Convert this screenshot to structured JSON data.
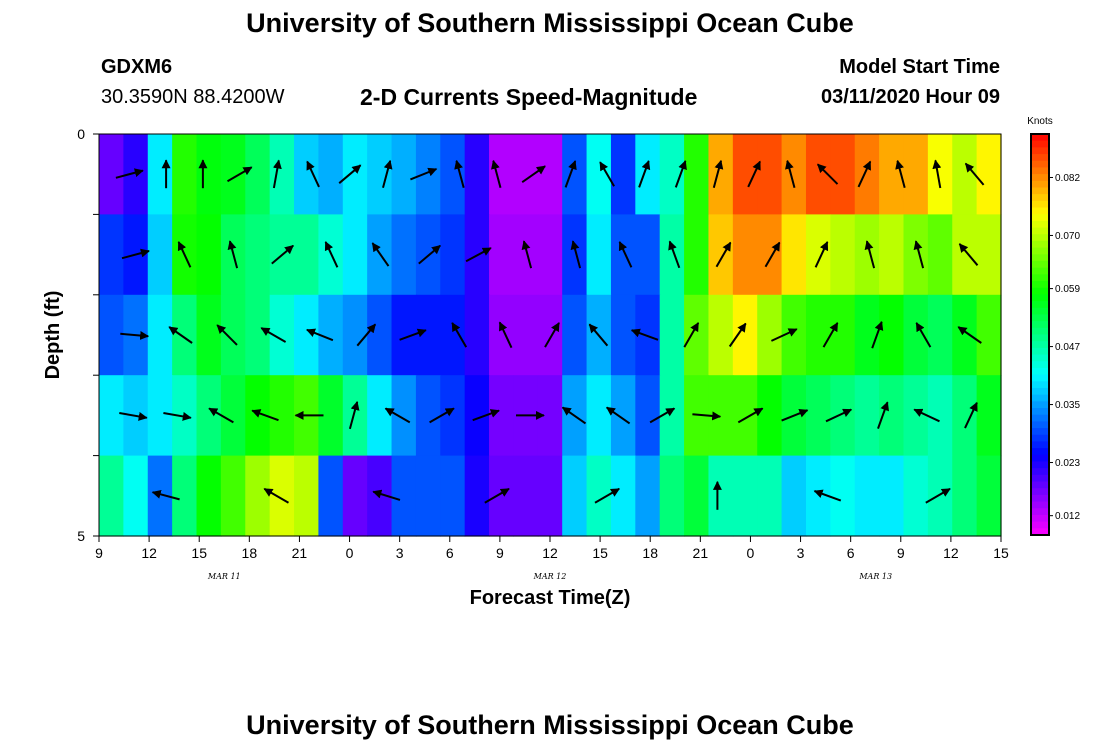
{
  "header": {
    "title": "University of Southern Mississippi Ocean Cube",
    "footer_title": "University of Southern Mississippi Ocean Cube",
    "station": "GDXM6",
    "location": "30.3590N 88.4200W",
    "subtitle": "2-D Currents Speed-Magnitude",
    "start_label": "Model Start Time",
    "start_value": "03/11/2020 Hour 09"
  },
  "chart_data": {
    "type": "heatmap",
    "title": "2-D Currents Speed-Magnitude",
    "xlabel": "Forecast Time(Z)",
    "ylabel": "Depth (ft)",
    "x_tick_labels": [
      "9",
      "12",
      "15",
      "18",
      "21",
      "0",
      "3",
      "6",
      "9",
      "12",
      "15",
      "18",
      "21",
      "0",
      "3",
      "6",
      "9",
      "12",
      "15"
    ],
    "x_hours": [
      0,
      3,
      6,
      9,
      12,
      15,
      18,
      21,
      24,
      27,
      30,
      33,
      36,
      39,
      42,
      45,
      48,
      51,
      54
    ],
    "date_labels": [
      {
        "label": "MAR 11",
        "hour": 7.5
      },
      {
        "label": "MAR 12",
        "hour": 27
      },
      {
        "label": "MAR 13",
        "hour": 46.5
      }
    ],
    "y_tick_labels": [
      "0",
      "5"
    ],
    "ylim": [
      0,
      5
    ],
    "depth_levels": [
      0.5,
      1.5,
      2.5,
      3.5,
      4.5
    ],
    "colorbar": {
      "unit": "Knots",
      "ticks": [
        "0.082",
        "0.070",
        "0.059",
        "0.047",
        "0.035",
        "0.023",
        "0.012"
      ],
      "tick_values": [
        0.082,
        0.07,
        0.059,
        0.047,
        0.035,
        0.023,
        0.012
      ],
      "range": [
        0.008,
        0.091
      ]
    },
    "speed_knots": [
      [
        0.018,
        0.022,
        0.04,
        0.06,
        0.057,
        0.056,
        0.052,
        0.046,
        0.038,
        0.036,
        0.04,
        0.038,
        0.036,
        0.033,
        0.03,
        0.022,
        0.013,
        0.013,
        0.013,
        0.03,
        0.042,
        0.028,
        0.04,
        0.045,
        0.06,
        0.08,
        0.086,
        0.086,
        0.082,
        0.086,
        0.086,
        0.083,
        0.08,
        0.08,
        0.074,
        0.07,
        0.075
      ],
      [
        0.028,
        0.026,
        0.038,
        0.059,
        0.058,
        0.052,
        0.05,
        0.048,
        0.048,
        0.044,
        0.04,
        0.035,
        0.032,
        0.03,
        0.028,
        0.022,
        0.014,
        0.014,
        0.014,
        0.028,
        0.04,
        0.03,
        0.03,
        0.047,
        0.06,
        0.078,
        0.082,
        0.082,
        0.076,
        0.072,
        0.07,
        0.068,
        0.07,
        0.066,
        0.064,
        0.07,
        0.07
      ],
      [
        0.03,
        0.032,
        0.04,
        0.05,
        0.056,
        0.052,
        0.05,
        0.044,
        0.04,
        0.036,
        0.034,
        0.03,
        0.026,
        0.026,
        0.026,
        0.022,
        0.015,
        0.015,
        0.015,
        0.03,
        0.036,
        0.03,
        0.028,
        0.047,
        0.064,
        0.07,
        0.075,
        0.068,
        0.062,
        0.06,
        0.06,
        0.056,
        0.058,
        0.054,
        0.052,
        0.056,
        0.062
      ],
      [
        0.04,
        0.038,
        0.04,
        0.045,
        0.05,
        0.054,
        0.058,
        0.06,
        0.062,
        0.055,
        0.048,
        0.04,
        0.034,
        0.03,
        0.028,
        0.024,
        0.017,
        0.017,
        0.017,
        0.035,
        0.04,
        0.035,
        0.03,
        0.047,
        0.062,
        0.062,
        0.062,
        0.058,
        0.054,
        0.052,
        0.05,
        0.048,
        0.05,
        0.048,
        0.046,
        0.05,
        0.056
      ],
      [
        0.048,
        0.042,
        0.032,
        0.05,
        0.058,
        0.062,
        0.068,
        0.072,
        0.07,
        0.03,
        0.018,
        0.02,
        0.03,
        0.03,
        0.03,
        0.023,
        0.018,
        0.018,
        0.018,
        0.038,
        0.045,
        0.04,
        0.035,
        0.05,
        0.054,
        0.046,
        0.046,
        0.046,
        0.038,
        0.04,
        0.042,
        0.04,
        0.04,
        0.044,
        0.046,
        0.05,
        0.054
      ]
    ],
    "arrows_direction_deg": [
      [
        75,
        0,
        0,
        60,
        10,
        335,
        50,
        15,
        68,
        345,
        345,
        55,
        20,
        330,
        20,
        20,
        15,
        25,
        345,
        315,
        25,
        345,
        350,
        320
      ],
      [
        75,
        335,
        345,
        50,
        335,
        325,
        50,
        62,
        345,
        345,
        335,
        340,
        30,
        30,
        25,
        345,
        345,
        320
      ],
      [
        95,
        305,
        315,
        300,
        292,
        40,
        70,
        330,
        335,
        30,
        320,
        290,
        30,
        35,
        65,
        30,
        20,
        330,
        305
      ],
      [
        100,
        100,
        300,
        290,
        270,
        15,
        300,
        60,
        70,
        90,
        305,
        305,
        60,
        95,
        60,
        68,
        65,
        20,
        295,
        25
      ],
      [
        285,
        300,
        287,
        60,
        60,
        0,
        290,
        60
      ]
    ]
  }
}
